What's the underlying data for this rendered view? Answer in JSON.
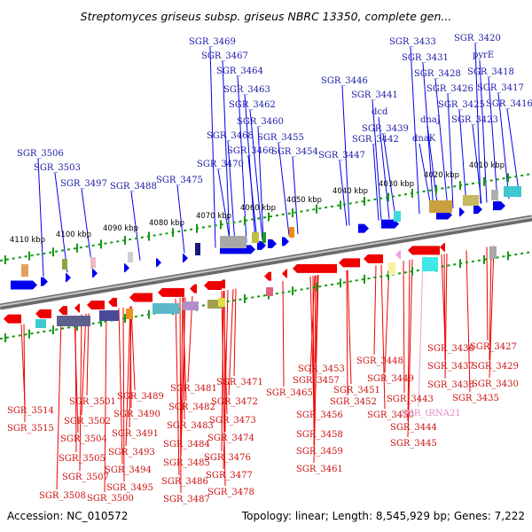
{
  "title": "Streptomyces griseus subsp. griseus NBRC 13350, complete gen...",
  "footer": {
    "accession": "Accession: NC_010572",
    "stats": "Topology: linear; Length: 8,545,929 bp; Genes: 7,222"
  },
  "scale_labels": [
    "4010 kbp",
    "4020 kbp",
    "4030 kbp",
    "4040 kbp",
    "4050 kbp",
    "4060 kbp",
    "4070 kbp",
    "4080 kbp",
    "4090 kbp",
    "4100 kbp",
    "4110 kbp"
  ],
  "top_labels": [
    "SGR_3469",
    "SGR_3467",
    "SGR_3464",
    "SGR_3463",
    "SGR_3462",
    "SGR_3460",
    "SGR_3468",
    "SGR_3466",
    "SGR_3455",
    "SGR_3470",
    "SGR_3454",
    "SGR_3475",
    "SGR_3488",
    "SGR_3497",
    "SGR_3503",
    "SGR_3506",
    "SGR_3446",
    "SGR_3441",
    "dcd",
    "SGR_3439",
    "SGR_3442",
    "SGR_3447",
    "SGR_3433",
    "SGR_3431",
    "SGR_3428",
    "SGR_3426",
    "SGR_3425",
    "SGR_3423",
    "dnaJ",
    "dnaK",
    "SGR_3420",
    "pyrE",
    "SGR_3418",
    "SGR_3417",
    "SGR_3416"
  ],
  "bottom_labels": [
    "SGR_3514",
    "SGR_3515",
    "SGR_3501",
    "SGR_3502",
    "SGR_3504",
    "SGR_3505",
    "SGR_3507",
    "SGR_3508",
    "SGR_3489",
    "SGR_3490",
    "SGR_3491",
    "SGR_3493",
    "SGR_3494",
    "SGR_3495",
    "SGR_3500",
    "SGR_3481",
    "SGR_3482",
    "SGR_3483",
    "SGR_3484",
    "SGR_3485",
    "SGR_3486",
    "SGR_3487",
    "SGR_3471",
    "SGR_3472",
    "SGR_3473",
    "SGR_3474",
    "SGR_3476",
    "SGR_3477",
    "SGR_3478",
    "SGR_3465",
    "SGR_3453",
    "SGR_3457",
    "SGR_3456",
    "SGR_3458",
    "SGR_3459",
    "SGR_3461",
    "SGR_3451",
    "SGR_3452",
    "SGR_3448",
    "SGR_3449",
    "SGR_3450",
    "SGR_3443",
    "SGR_3444",
    "SGR_3445",
    "SGR_3436",
    "SGR_3437",
    "SGR_3438",
    "SGR_tRNA21",
    "SGR_3435",
    "SGR_3427",
    "SGR_3429",
    "SGR_3430"
  ],
  "colors": {
    "forward": "#0000ee",
    "reverse": "#ee0000",
    "trna": "#f0a0d8",
    "backbone": "#888888",
    "ticks": "#119911"
  }
}
